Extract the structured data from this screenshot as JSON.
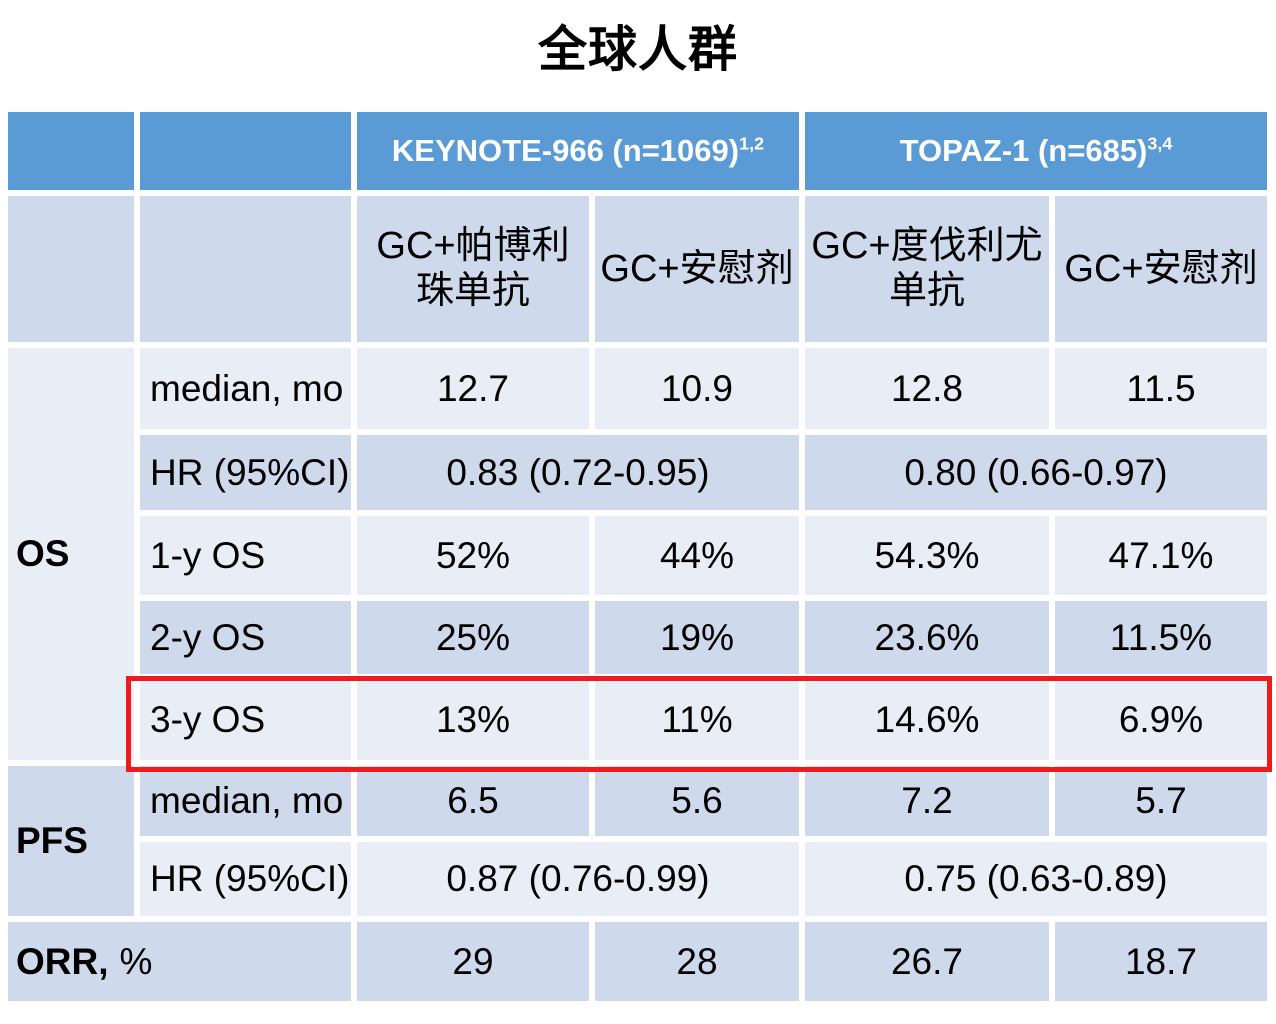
{
  "colors": {
    "header_blue": "#5B9BD5",
    "band_dark": "#CED9EC",
    "band_light": "#E9EDF6",
    "highlight_red": "#EC1C1C",
    "header_text": "#FFFFFF",
    "body_text": "#000000"
  },
  "chart_data": {
    "type": "table",
    "title": "全球人群",
    "trial_headers": [
      {
        "name": "KEYNOTE-966 (n=1069)",
        "sup": "1,2"
      },
      {
        "name": "TOPAZ-1 (n=685)",
        "sup": "3,4"
      }
    ],
    "arm_headers": [
      "GC+帕博利珠单抗",
      "GC+安慰剂",
      "GC+度伐利尤单抗",
      "GC+安慰剂"
    ],
    "rows": [
      {
        "section": "OS",
        "metric": "median, mo",
        "values": [
          "12.7",
          "10.9",
          "12.8",
          "11.5"
        ]
      },
      {
        "section": "OS",
        "metric": "HR (95%CI)",
        "values": [
          "0.83 (0.72-0.95)",
          "0.80 (0.66-0.97)"
        ],
        "spanning": true
      },
      {
        "section": "OS",
        "metric": "1-y OS",
        "values": [
          "52%",
          "44%",
          "54.3%",
          "47.1%"
        ]
      },
      {
        "section": "OS",
        "metric": "2-y OS",
        "values": [
          "25%",
          "19%",
          "23.6%",
          "11.5%"
        ]
      },
      {
        "section": "OS",
        "metric": "3-y OS",
        "values": [
          "13%",
          "11%",
          "14.6%",
          "6.9%"
        ],
        "highlighted": true
      },
      {
        "section": "PFS",
        "metric": "median, mo",
        "values": [
          "6.5",
          "5.6",
          "7.2",
          "5.7"
        ]
      },
      {
        "section": "PFS",
        "metric": "HR (95%CI)",
        "values": [
          "0.87 (0.76-0.99)",
          "0.75 (0.63-0.89)"
        ],
        "spanning": true
      },
      {
        "section": "",
        "metric_bold": "ORR,",
        "metric_unit": "%",
        "values": [
          "29",
          "28",
          "26.7",
          "18.7"
        ]
      }
    ],
    "layout_hints": {
      "highlighted_row": "3-y OS",
      "banding": "alternating light/dark body rows",
      "grid": "white cell gaps"
    }
  }
}
